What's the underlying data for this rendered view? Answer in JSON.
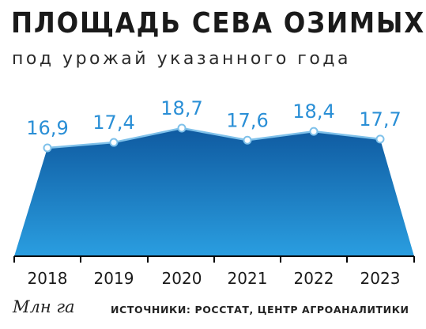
{
  "header": {
    "title": "ПЛОЩАДЬ СЕВА ОЗИМЫХ",
    "subtitle": "под урожай указанного года"
  },
  "footer": {
    "unit": "Млн га",
    "source": "ИСТОЧНИКИ: РОССТАТ, ЦЕНТР АГРОАНАЛИТИКИ"
  },
  "colors": {
    "area_top": "#0f5aa0",
    "area_bottom": "#2a9ee0",
    "line": "#7fc1ea",
    "label": "#2a8fd6",
    "axis": "#000000"
  },
  "chart_data": {
    "type": "area",
    "title": "ПЛОЩАДЬ СЕВА ОЗИМЫХ",
    "subtitle": "под урожай указанного года",
    "ylabel": "Млн га",
    "categories": [
      "2018",
      "2019",
      "2020",
      "2021",
      "2022",
      "2023"
    ],
    "values": [
      16.9,
      17.4,
      18.7,
      17.6,
      18.4,
      17.7
    ],
    "value_labels": [
      "16,9",
      "17,4",
      "18,7",
      "17,6",
      "18,4",
      "17,7"
    ],
    "grid": false,
    "legend": "none"
  }
}
